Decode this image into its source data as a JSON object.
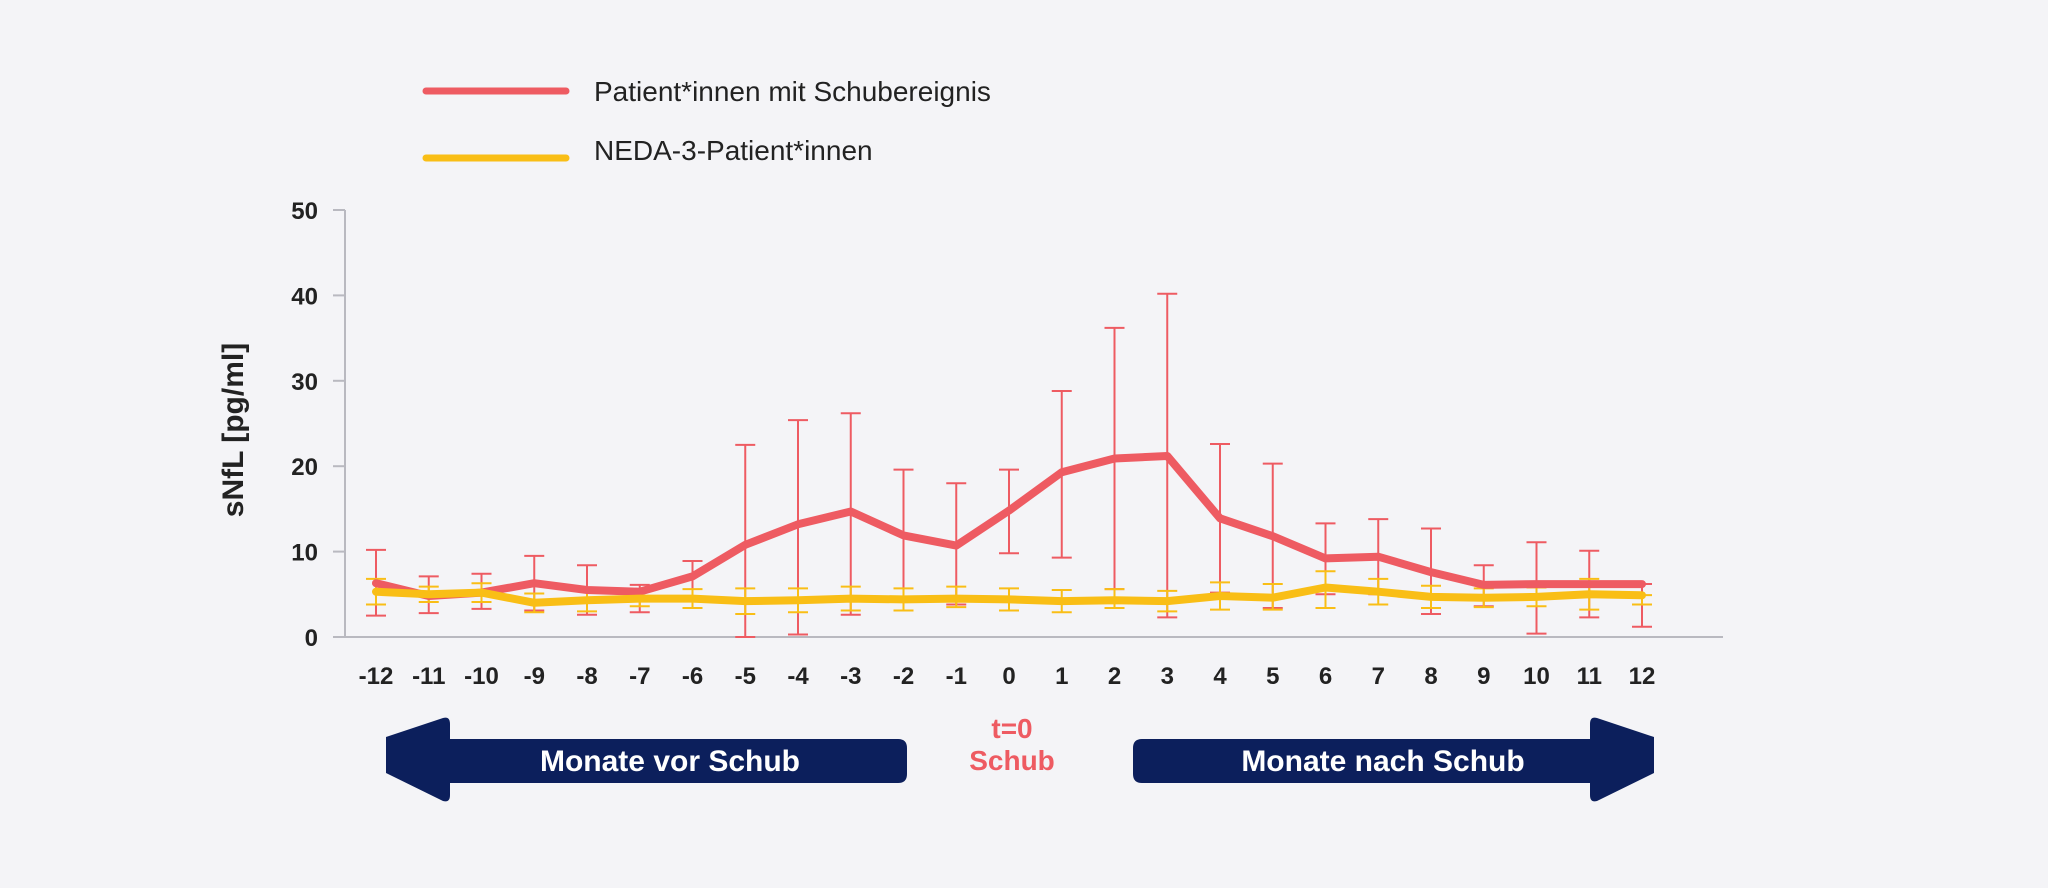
{
  "chart_data": {
    "type": "line",
    "xlabel": "",
    "ylabel": "sNfL [pg/ml]",
    "ylim": [
      0,
      50
    ],
    "yticks": [
      "0",
      "10",
      "20",
      "30",
      "40",
      "50"
    ],
    "x": [
      -12,
      -11,
      -10,
      -9,
      -8,
      -7,
      -6,
      -5,
      -4,
      -3,
      -2,
      -1,
      0,
      1,
      2,
      3,
      4,
      5,
      6,
      7,
      8,
      9,
      10,
      11,
      12
    ],
    "xtick_labels": [
      "-12",
      "-11",
      "-10",
      "-9",
      "-8",
      "-7",
      "-6",
      "-5",
      "-4",
      "-3",
      "-2",
      "-1",
      "0",
      "1",
      "2",
      "3",
      "4",
      "5",
      "6",
      "7",
      "8",
      "9",
      "10",
      "11",
      "12"
    ],
    "highlight_tick": "0",
    "series": [
      {
        "name": "Patient*innen mit Schubereignis",
        "color": "#ee5b62",
        "values": [
          6.3,
          4.8,
          5.2,
          6.3,
          5.5,
          5.3,
          7.1,
          10.8,
          13.2,
          14.7,
          11.9,
          10.7,
          14.8,
          19.3,
          20.9,
          21.2,
          13.9,
          11.8,
          9.2,
          9.4,
          7.6,
          6.1,
          6.2,
          6.2,
          6.2
        ],
        "upper": [
          10.2,
          7.1,
          7.4,
          9.5,
          8.4,
          6.1,
          8.9,
          22.5,
          25.4,
          26.2,
          19.6,
          18.0,
          19.6,
          28.8,
          36.2,
          40.2,
          22.6,
          20.3,
          13.3,
          13.8,
          12.7,
          8.4,
          11.1,
          10.1,
          6.2
        ],
        "lower": [
          2.5,
          2.8,
          3.3,
          3.1,
          2.6,
          2.9,
          4.4,
          0.0,
          0.3,
          2.6,
          4.1,
          3.8,
          9.8,
          9.3,
          5.6,
          2.3,
          5.2,
          3.4,
          5.0,
          5.0,
          2.7,
          3.6,
          0.4,
          2.3,
          1.2
        ]
      },
      {
        "name": "NEDA-3-Patient*innen",
        "color": "#f9be16",
        "values": [
          5.3,
          5.0,
          5.2,
          4.0,
          4.3,
          4.5,
          4.5,
          4.2,
          4.3,
          4.5,
          4.4,
          4.5,
          4.4,
          4.2,
          4.3,
          4.2,
          4.8,
          4.6,
          5.8,
          5.3,
          4.7,
          4.6,
          4.7,
          5.0,
          4.9
        ],
        "upper": [
          6.8,
          5.9,
          6.3,
          5.1,
          5.6,
          5.4,
          5.6,
          5.7,
          5.7,
          5.9,
          5.7,
          5.9,
          5.7,
          5.5,
          5.6,
          5.4,
          6.4,
          6.2,
          7.7,
          6.8,
          6.0,
          5.7,
          5.8,
          6.8,
          4.9
        ],
        "lower": [
          3.8,
          4.1,
          4.1,
          2.9,
          3.0,
          3.6,
          3.4,
          2.7,
          2.9,
          3.1,
          3.1,
          3.5,
          3.1,
          2.9,
          3.4,
          3.0,
          3.2,
          3.2,
          3.4,
          3.8,
          3.4,
          3.5,
          3.6,
          3.2,
          3.8
        ]
      }
    ],
    "legend_position": "top-left",
    "annotations": {
      "event_line1": "t=0",
      "event_line2": "Schub",
      "before_label": "Monate vor Schub",
      "after_label": "Monate nach Schub"
    },
    "colors": {
      "axis": "#b9b9c0",
      "text": "#222222",
      "arrow": "#0c1f5c",
      "event": "#ee5b62"
    }
  }
}
